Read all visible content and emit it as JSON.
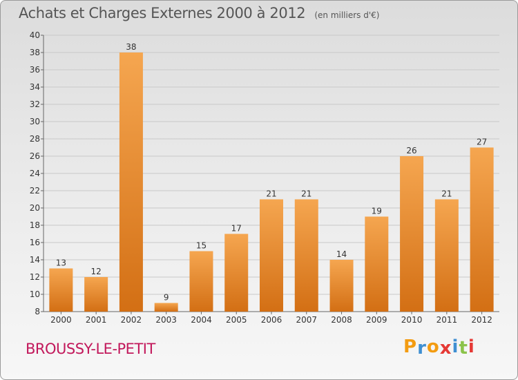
{
  "chart_data": {
    "type": "bar",
    "title": "Achats et Charges Externes 2000 à 2012",
    "subtitle": "(en milliers d'€)",
    "categories": [
      "2000",
      "2001",
      "2002",
      "2003",
      "2004",
      "2005",
      "2006",
      "2007",
      "2008",
      "2009",
      "2010",
      "2011",
      "2012"
    ],
    "values": [
      13,
      12,
      38,
      9,
      15,
      17,
      21,
      21,
      14,
      19,
      26,
      21,
      27
    ],
    "ylim": [
      8,
      40
    ],
    "yticks": [
      8,
      10,
      12,
      14,
      16,
      18,
      20,
      22,
      24,
      26,
      28,
      30,
      32,
      34,
      36,
      38,
      40
    ],
    "grid": true,
    "bar_color_top": "#f5a650",
    "bar_color_bottom": "#d36f14"
  },
  "commune": "BROUSSY-LE-PETIT",
  "logo": {
    "letters": [
      "P",
      "r",
      "o",
      "x",
      "i",
      "t",
      "i"
    ],
    "colors": [
      "#f39c12",
      "#3f8fd2",
      "#f39c12",
      "#e53935",
      "#3f8fd2",
      "#8bc34a",
      "#e53935"
    ]
  }
}
